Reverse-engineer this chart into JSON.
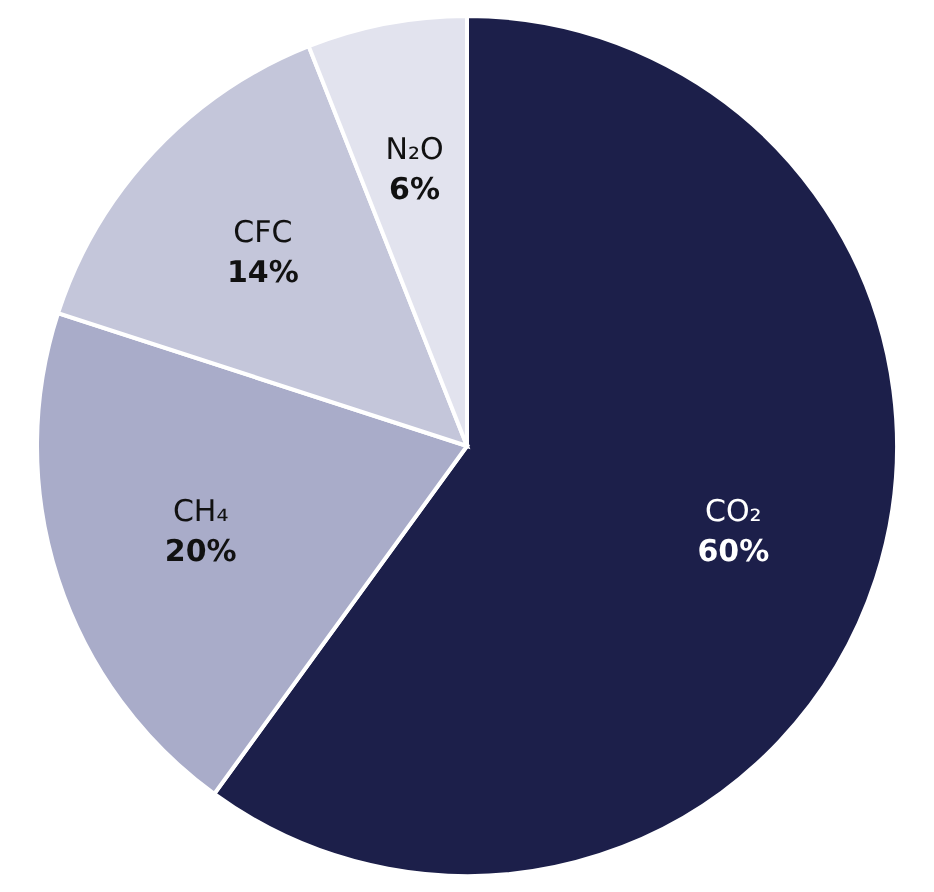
{
  "chart_data": {
    "type": "pie",
    "categories": [
      "CO₂",
      "CH₄",
      "CFC",
      "N₂O"
    ],
    "values": [
      60,
      20,
      14,
      6
    ],
    "value_labels": [
      "60%",
      "20%",
      "14%",
      "6%"
    ],
    "colors": [
      "#1c1f4a",
      "#a9acc9",
      "#c4c6da",
      "#e2e3ee"
    ]
  }
}
